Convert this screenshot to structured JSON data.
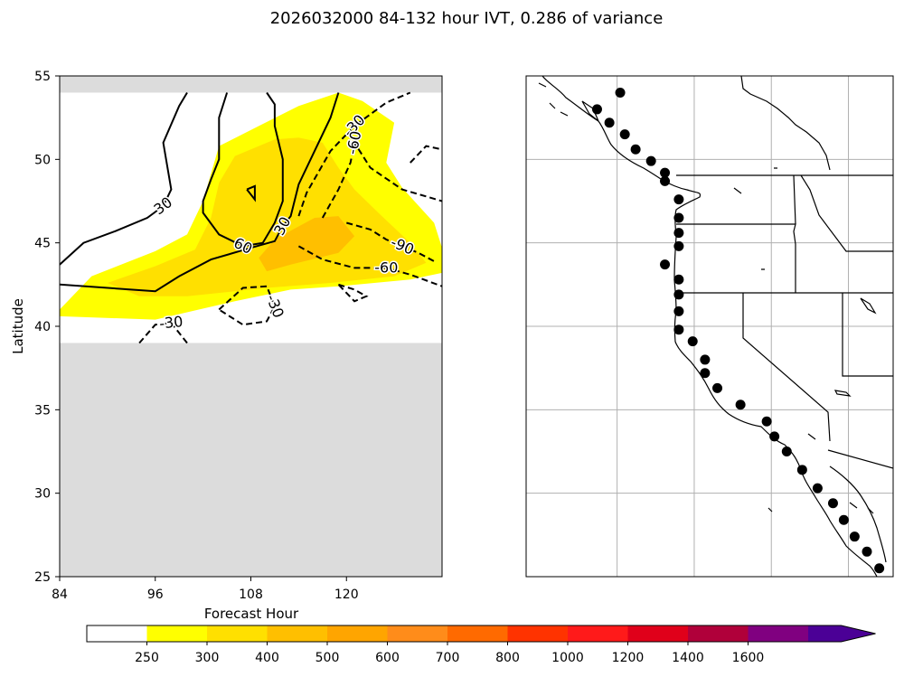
{
  "title": "2026032000 84-132 hour IVT, 0.286 of variance",
  "colors": {
    "masked": "#dcdcdc",
    "contour": "#000000",
    "coast": "#000000",
    "grid": "#b0b0b0",
    "point": "#000000"
  },
  "chart_data": [
    {
      "type": "contour",
      "panel": "left",
      "xlabel": "Forecast Hour",
      "ylabel": "Latitude",
      "xlim": [
        84,
        132
      ],
      "ylim": [
        25,
        55
      ],
      "xticks": [
        84,
        96,
        108,
        120
      ],
      "yticks": [
        25,
        30,
        35,
        40,
        45,
        50,
        55
      ],
      "masked_regions": [
        {
          "lat": [
            54,
            55
          ]
        },
        {
          "lat": [
            25,
            39
          ]
        }
      ],
      "fill_bands": [
        {
          "level": 250,
          "color": "#ffff00",
          "polygon": [
            [
              84,
              41
            ],
            [
              88,
              43
            ],
            [
              96,
              44.5
            ],
            [
              100,
              45.5
            ],
            [
              102,
              47.5
            ],
            [
              104,
              50.8
            ],
            [
              109,
              52
            ],
            [
              114,
              53.2
            ],
            [
              119,
              54
            ],
            [
              122,
              53.5
            ],
            [
              126,
              52.2
            ],
            [
              125,
              49.8
            ],
            [
              127,
              48.3
            ],
            [
              131,
              46.2
            ],
            [
              132,
              44.7
            ],
            [
              132,
              43.2
            ],
            [
              128,
              42.8
            ],
            [
              119,
              42.4
            ],
            [
              113,
              42.2
            ],
            [
              106,
              41.5
            ],
            [
              96,
              40.4
            ],
            [
              84,
              40.6
            ]
          ]
        },
        {
          "level": 300,
          "color": "#ffe000",
          "polygon": [
            [
              90,
              42.6
            ],
            [
              96,
              43.6
            ],
            [
              101,
              44.6
            ],
            [
              103,
              46.5
            ],
            [
              104,
              48.6
            ],
            [
              106,
              50.2
            ],
            [
              111,
              51.2
            ],
            [
              114,
              51.3
            ],
            [
              117,
              51.0
            ],
            [
              119,
              49.5
            ],
            [
              121,
              48.2
            ],
            [
              124,
              46.8
            ],
            [
              128,
              45.0
            ],
            [
              130,
              43.8
            ],
            [
              126,
              43.0
            ],
            [
              118,
              42.6
            ],
            [
              110,
              42.3
            ],
            [
              100,
              41.8
            ],
            [
              94,
              41.8
            ]
          ]
        },
        {
          "level": 400,
          "color": "#ffbf00",
          "polygon": [
            [
              109,
              44.1
            ],
            [
              111,
              45.2
            ],
            [
              112.5,
              45.6
            ],
            [
              116,
              46.5
            ],
            [
              119,
              46.6
            ],
            [
              121,
              45.4
            ],
            [
              119,
              44.4
            ],
            [
              113,
              43.7
            ],
            [
              110,
              43.3
            ]
          ]
        }
      ],
      "contours": [
        {
          "level": 30,
          "label": "30",
          "style": "solid",
          "path": [
            [
              84,
              43.7
            ],
            [
              87,
              45
            ],
            [
              91,
              45.7
            ],
            [
              95,
              46.5
            ],
            [
              97,
              47.2
            ],
            [
              98,
              48.2
            ],
            [
              97,
              51
            ],
            [
              99,
              53.2
            ],
            [
              100,
              54
            ]
          ]
        },
        {
          "level": 30,
          "label": "30",
          "style": "solid",
          "path": [
            [
              84,
              42.5
            ],
            [
              96,
              42.1
            ],
            [
              99,
              43
            ],
            [
              103,
              44
            ],
            [
              108,
              44.7
            ],
            [
              111,
              45.1
            ],
            [
              112,
              46
            ],
            [
              113,
              46.6
            ],
            [
              114,
              48.5
            ],
            [
              116,
              50.5
            ],
            [
              118,
              52.5
            ],
            [
              119,
              54
            ]
          ]
        },
        {
          "level": 60,
          "label": "60",
          "style": "solid",
          "path": [
            [
              105,
              54
            ],
            [
              104,
              52.5
            ],
            [
              104,
              50
            ],
            [
              103,
              48.8
            ],
            [
              102,
              47.5
            ],
            [
              102,
              46.8
            ],
            [
              104,
              45.5
            ],
            [
              107,
              44.8
            ],
            [
              109.5,
              45.0
            ],
            [
              111,
              46.2
            ],
            [
              112,
              47.5
            ],
            [
              112,
              50
            ],
            [
              111,
              52
            ],
            [
              111,
              53.3
            ],
            [
              110,
              54
            ]
          ]
        },
        {
          "level": 60,
          "label": "",
          "style": "solid",
          "path": [
            [
              107.5,
              48.2
            ],
            [
              108.5,
              47.6
            ],
            [
              108.5,
              48.4
            ],
            [
              107.5,
              48.2
            ]
          ]
        },
        {
          "level": -30,
          "label": "-30",
          "style": "dashed",
          "path": [
            [
              94,
              39
            ],
            [
              96,
              40.1
            ],
            [
              98,
              40.2
            ],
            [
              100,
              39
            ]
          ]
        },
        {
          "level": -30,
          "label": "-30",
          "style": "dashed",
          "path": [
            [
              104,
              41
            ],
            [
              107,
              42.3
            ],
            [
              110,
              42.4
            ],
            [
              111,
              41.2
            ],
            [
              110,
              40.3
            ],
            [
              107,
              40.1
            ],
            [
              104,
              41
            ]
          ]
        },
        {
          "level": -30,
          "label": "-30",
          "style": "dashed",
          "path": [
            [
              114,
              46.6
            ],
            [
              115,
              48
            ],
            [
              118,
              50.5
            ],
            [
              121,
              52
            ],
            [
              125,
              53.4
            ],
            [
              128,
              54
            ]
          ]
        },
        {
          "level": -30,
          "label": "",
          "style": "dashed",
          "path": [
            [
              119,
              42.5
            ],
            [
              121,
              42.2
            ],
            [
              122.5,
              41.8
            ],
            [
              121,
              41.5
            ],
            [
              119,
              42.5
            ]
          ]
        },
        {
          "level": -30,
          "label": "",
          "style": "dashed",
          "path": [
            [
              128,
              49.8
            ],
            [
              130,
              50.8
            ],
            [
              132,
              50.6
            ]
          ]
        },
        {
          "level": -60,
          "label": "-60",
          "style": "dashed",
          "path": [
            [
              114,
              44.8
            ],
            [
              117,
              44
            ],
            [
              121,
              43.5
            ],
            [
              125,
              43.5
            ],
            [
              128,
              43.1
            ],
            [
              132,
              42.4
            ]
          ]
        },
        {
          "level": -60,
          "label": "-60",
          "style": "dashed",
          "path": [
            [
              117,
              46.5
            ],
            [
              119,
              48.2
            ],
            [
              120.5,
              49.8
            ],
            [
              121,
              51
            ],
            [
              123,
              49.5
            ],
            [
              127,
              48.2
            ],
            [
              132,
              47.5
            ]
          ]
        },
        {
          "level": -90,
          "label": "-90",
          "style": "dashed",
          "path": [
            [
              120,
              46.2
            ],
            [
              123,
              45.8
            ],
            [
              125,
              45.2
            ],
            [
              127,
              44.8
            ],
            [
              129,
              44.4
            ],
            [
              131,
              43.9
            ]
          ]
        }
      ]
    },
    {
      "type": "scatter",
      "panel": "right",
      "map": "North America west coast",
      "points": [
        [
          -124.8,
          54.0
        ],
        [
          -126.3,
          53.0
        ],
        [
          -125.5,
          52.2
        ],
        [
          -124.5,
          51.5
        ],
        [
          -123.8,
          50.6
        ],
        [
          -122.8,
          49.9
        ],
        [
          -121.9,
          49.2
        ],
        [
          -121.9,
          48.7
        ],
        [
          -121.0,
          47.6
        ],
        [
          -121.0,
          46.5
        ],
        [
          -121.0,
          45.6
        ],
        [
          -121.0,
          44.8
        ],
        [
          -121.9,
          43.7
        ],
        [
          -121.0,
          42.8
        ],
        [
          -121.0,
          41.9
        ],
        [
          -121.0,
          40.9
        ],
        [
          -121.0,
          39.8
        ],
        [
          -120.1,
          39.1
        ],
        [
          -119.3,
          38.0
        ],
        [
          -119.3,
          37.2
        ],
        [
          -118.5,
          36.3
        ],
        [
          -117.0,
          35.3
        ],
        [
          -115.3,
          34.3
        ],
        [
          -114.8,
          33.4
        ],
        [
          -114.0,
          32.5
        ],
        [
          -113.0,
          31.4
        ],
        [
          -112.0,
          30.3
        ],
        [
          -111.0,
          29.4
        ],
        [
          -110.3,
          28.4
        ],
        [
          -109.6,
          27.4
        ],
        [
          -108.8,
          26.5
        ],
        [
          -108.0,
          25.5
        ]
      ],
      "gridlines_lon": [
        -125,
        -120,
        -115,
        -110
      ],
      "gridlines_lat": [
        50,
        45,
        40,
        35,
        30
      ]
    }
  ],
  "colorbar": {
    "levels": [
      250,
      300,
      400,
      500,
      600,
      700,
      800,
      1000,
      1200,
      1400,
      1600
    ],
    "labels": [
      "250",
      "300",
      "400",
      "500",
      "600",
      "700",
      "800",
      "1000",
      "1200",
      "1400",
      "1600"
    ],
    "colors": [
      "#ffffff",
      "#ffff00",
      "#ffe000",
      "#ffbf00",
      "#ffa500",
      "#ff8c1a",
      "#ff6a00",
      "#ff3300",
      "#ff1a1a",
      "#e0001a",
      "#b0003a",
      "#800080",
      "#4b0096"
    ],
    "extend": "max"
  }
}
